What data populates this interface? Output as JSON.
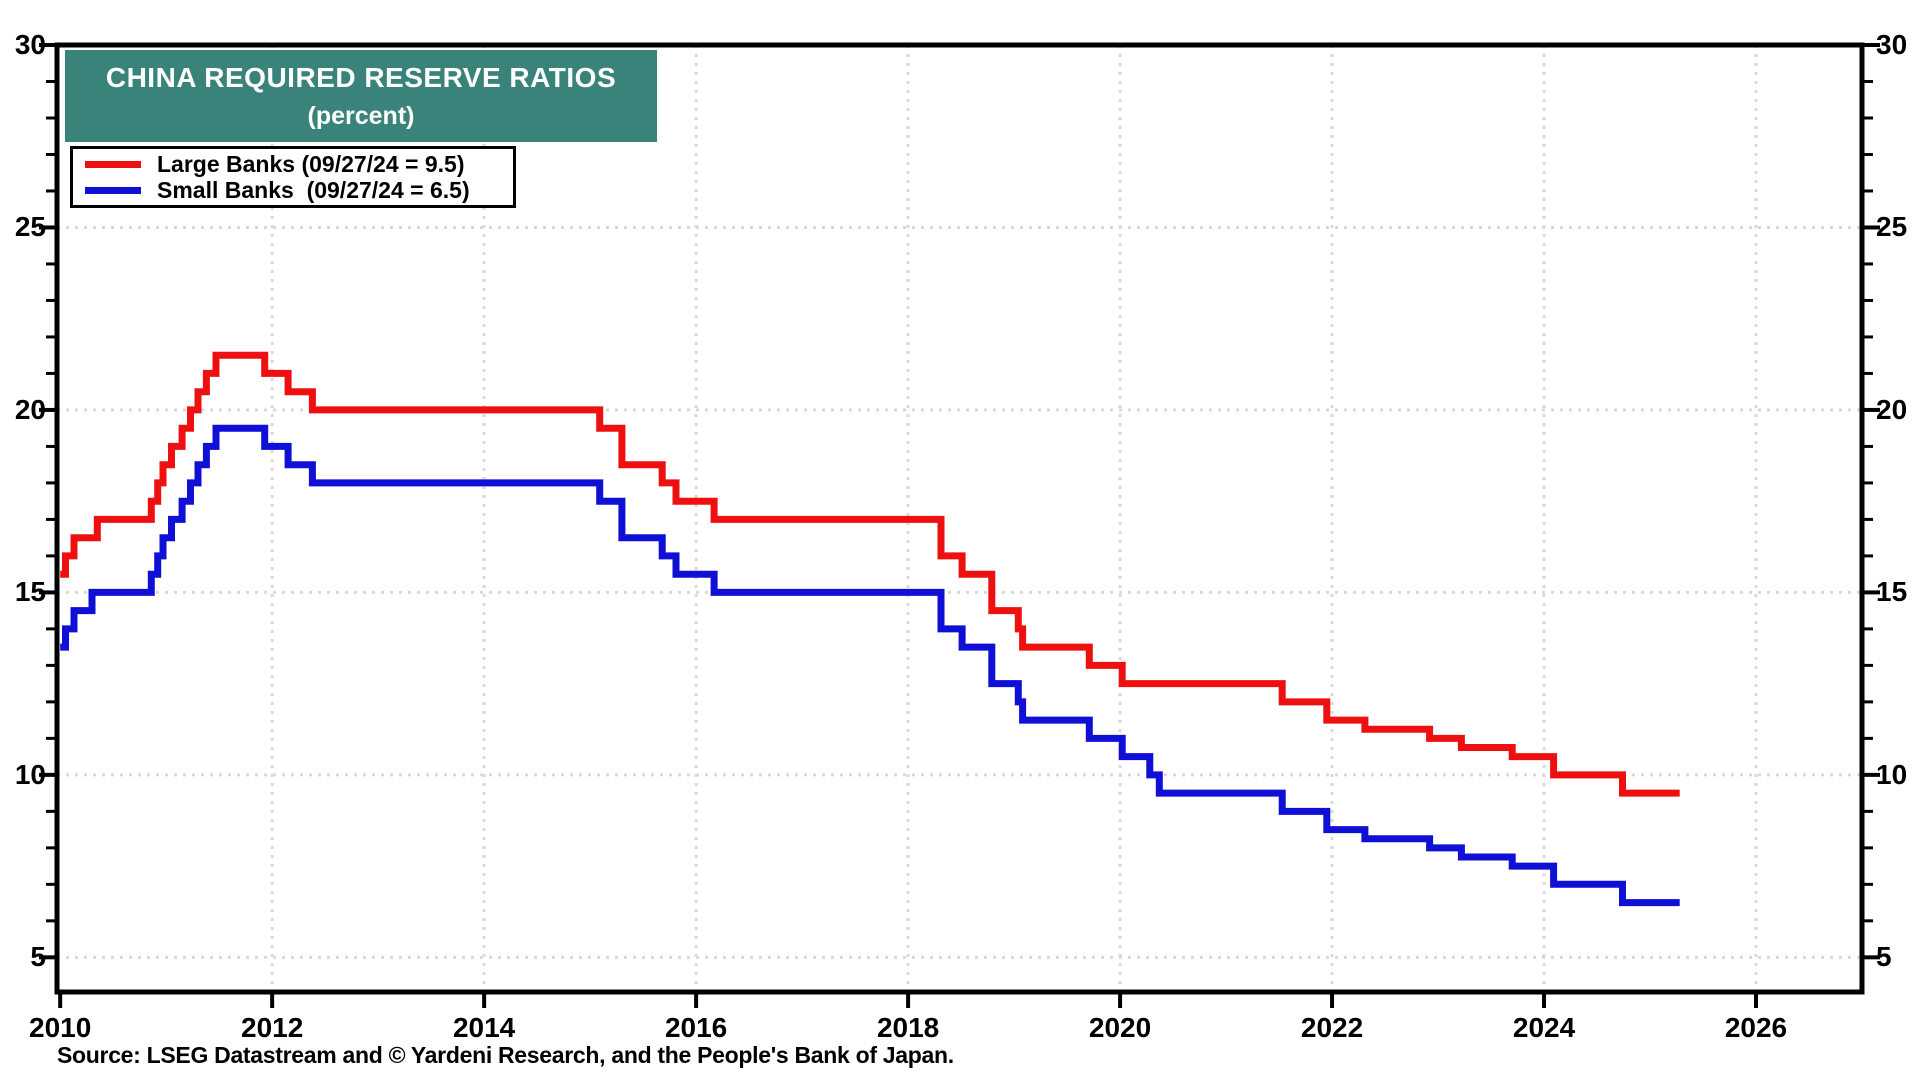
{
  "title": {
    "line1": "CHINA REQUIRED RESERVE RATIOS",
    "line2": "(percent)"
  },
  "legend": {
    "items": [
      {
        "label": "Large Banks (09/27/24 = 9.5)",
        "color": "#ee1010"
      },
      {
        "label": "Small Banks  (09/27/24 = 6.5)",
        "color": "#0f0fd6"
      }
    ]
  },
  "source": "Source: LSEG Datastream and © Yardeni Research, and the People's Bank of Japan.",
  "colors": {
    "title_bg": "#3a837a",
    "title_text": "#ffffff",
    "axis": "#000000",
    "gridline": "#d9d9d9",
    "large_banks": "#ee1010",
    "small_banks": "#0f0fd6"
  },
  "chart_data": {
    "type": "line",
    "step": true,
    "title": "CHINA REQUIRED RESERVE RATIOS (percent)",
    "xlabel": "",
    "ylabel": "percent",
    "xlim": [
      2009.97,
      2027.0
    ],
    "ylim": [
      4.05,
      30
    ],
    "x_ticks": [
      2010,
      2012,
      2014,
      2016,
      2018,
      2020,
      2022,
      2024,
      2026
    ],
    "y_ticks": [
      5,
      10,
      15,
      20,
      25,
      30
    ],
    "y_minor_tick_interval": 1,
    "grid": "dotted",
    "legend_position": "top-left",
    "x_end": 2025.28,
    "series": [
      {
        "name": "Large Banks",
        "color": "#ee1010",
        "points": [
          [
            2010.0,
            15.5
          ],
          [
            2010.05,
            16
          ],
          [
            2010.13,
            16.5
          ],
          [
            2010.35,
            17
          ],
          [
            2010.86,
            17.5
          ],
          [
            2010.92,
            18
          ],
          [
            2010.97,
            18.5
          ],
          [
            2011.05,
            19
          ],
          [
            2011.15,
            19.5
          ],
          [
            2011.23,
            20
          ],
          [
            2011.3,
            20.5
          ],
          [
            2011.38,
            21
          ],
          [
            2011.47,
            21.5
          ],
          [
            2011.93,
            21
          ],
          [
            2012.15,
            20.5
          ],
          [
            2012.38,
            20
          ],
          [
            2015.09,
            19.5
          ],
          [
            2015.3,
            18.5
          ],
          [
            2015.68,
            18
          ],
          [
            2015.81,
            17.5
          ],
          [
            2016.17,
            17
          ],
          [
            2018.31,
            16
          ],
          [
            2018.51,
            15.5
          ],
          [
            2018.79,
            14.5
          ],
          [
            2019.04,
            14
          ],
          [
            2019.08,
            13.5
          ],
          [
            2019.71,
            13
          ],
          [
            2020.02,
            12.5
          ],
          [
            2021.53,
            12
          ],
          [
            2021.95,
            11.5
          ],
          [
            2022.31,
            11.25
          ],
          [
            2022.92,
            11
          ],
          [
            2023.22,
            10.75
          ],
          [
            2023.7,
            10.5
          ],
          [
            2024.09,
            10
          ],
          [
            2024.74,
            9.5
          ]
        ]
      },
      {
        "name": "Small Banks",
        "color": "#0f0fd6",
        "points": [
          [
            2010.0,
            13.5
          ],
          [
            2010.05,
            14
          ],
          [
            2010.13,
            14.5
          ],
          [
            2010.3,
            15
          ],
          [
            2010.86,
            15.5
          ],
          [
            2010.92,
            16
          ],
          [
            2010.97,
            16.5
          ],
          [
            2011.05,
            17
          ],
          [
            2011.15,
            17.5
          ],
          [
            2011.23,
            18
          ],
          [
            2011.3,
            18.5
          ],
          [
            2011.38,
            19
          ],
          [
            2011.47,
            19.5
          ],
          [
            2011.93,
            19
          ],
          [
            2012.15,
            18.5
          ],
          [
            2012.38,
            18
          ],
          [
            2015.09,
            17.5
          ],
          [
            2015.3,
            16.5
          ],
          [
            2015.68,
            16
          ],
          [
            2015.81,
            15.5
          ],
          [
            2016.17,
            15
          ],
          [
            2018.31,
            14
          ],
          [
            2018.51,
            13.5
          ],
          [
            2018.79,
            12.5
          ],
          [
            2019.04,
            12
          ],
          [
            2019.08,
            11.5
          ],
          [
            2019.71,
            11
          ],
          [
            2020.02,
            10.5
          ],
          [
            2020.28,
            10
          ],
          [
            2020.37,
            9.5
          ],
          [
            2021.53,
            9
          ],
          [
            2021.95,
            8.5
          ],
          [
            2022.31,
            8.25
          ],
          [
            2022.92,
            8
          ],
          [
            2023.22,
            7.75
          ],
          [
            2023.7,
            7.5
          ],
          [
            2024.09,
            7
          ],
          [
            2024.74,
            6.5
          ]
        ]
      }
    ]
  }
}
